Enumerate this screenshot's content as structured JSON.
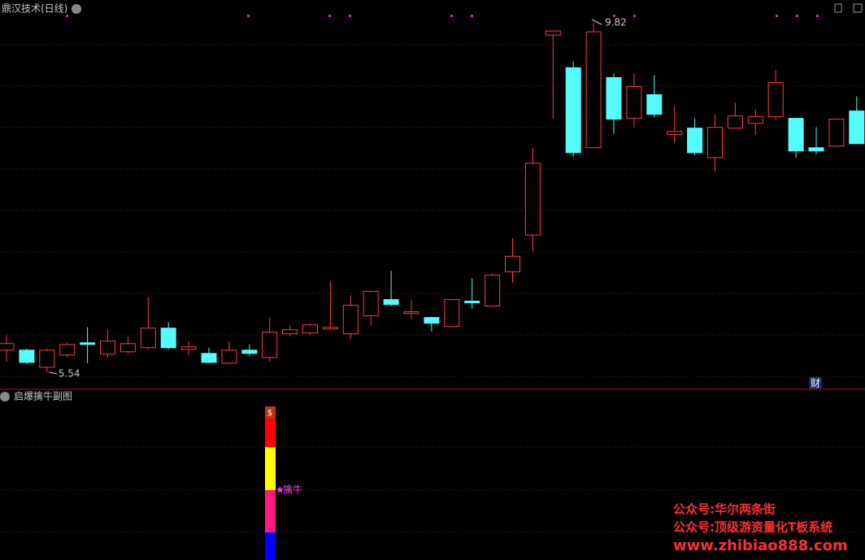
{
  "chart_data": {
    "type": "candlestick",
    "title": "鼎汉技术(日线)",
    "up_color": "#ff3c3c",
    "down_color": "#54fcfc",
    "open": [
      5.81,
      5.81,
      5.6,
      5.75,
      5.9,
      5.76,
      5.79,
      5.84,
      6.08,
      5.82,
      5.77,
      5.65,
      5.81,
      5.72,
      6.01,
      6.02,
      6.07,
      6.01,
      6.23,
      6.43,
      6.26,
      6.21,
      6.1,
      6.41,
      6.35,
      6.77,
      7.22,
      9.67,
      9.27,
      8.29,
      9.15,
      8.65,
      8.94,
      8.45,
      8.53,
      8.17,
      8.53,
      8.59,
      8.67,
      8.65,
      8.29,
      8.31,
      8.74
    ],
    "high": [
      5.99,
      5.83,
      5.83,
      5.91,
      6.09,
      6.06,
      5.98,
      6.46,
      6.15,
      5.92,
      5.84,
      5.92,
      5.88,
      6.21,
      6.11,
      6.14,
      6.66,
      6.48,
      6.54,
      6.78,
      6.42,
      6.22,
      6.43,
      6.69,
      6.75,
      7.18,
      8.29,
      9.72,
      9.35,
      9.82,
      9.2,
      9.2,
      9.18,
      8.79,
      8.65,
      8.7,
      8.84,
      8.76,
      9.24,
      8.65,
      8.54,
      8.64,
      8.92
    ],
    "low": [
      5.67,
      5.64,
      5.54,
      5.72,
      5.65,
      5.72,
      5.77,
      5.82,
      5.82,
      5.75,
      5.65,
      5.65,
      5.74,
      5.67,
      5.98,
      6.0,
      6.06,
      5.94,
      6.11,
      6.35,
      6.19,
      6.04,
      6.1,
      6.32,
      6.35,
      6.64,
      7.02,
      8.65,
      8.18,
      8.29,
      8.46,
      8.54,
      8.66,
      8.35,
      8.2,
      8.0,
      8.53,
      8.45,
      8.63,
      8.17,
      8.21,
      8.31,
      8.34
    ],
    "close": [
      5.89,
      5.66,
      5.81,
      5.88,
      5.88,
      5.92,
      5.89,
      6.08,
      5.84,
      5.85,
      5.66,
      5.81,
      5.77,
      6.03,
      6.06,
      6.12,
      6.09,
      6.36,
      6.53,
      6.37,
      6.28,
      6.14,
      6.43,
      6.39,
      6.73,
      6.96,
      8.1,
      9.72,
      8.23,
      9.71,
      8.64,
      9.04,
      8.7,
      8.49,
      8.23,
      8.54,
      8.68,
      8.67,
      9.09,
      8.25,
      8.25,
      8.64,
      8.34
    ],
    "ylim": [
      5.34,
      10.1
    ],
    "max_label": 9.82,
    "min_label": 5.54
  },
  "indicator": {
    "title": "启爆擒牛副图",
    "signal": "擒牛"
  },
  "badge": "财",
  "watermarks": [
    "公众号:华尔两条街",
    "公众号:顶级游资量化T板系统",
    "www.zhibiao888.com"
  ]
}
